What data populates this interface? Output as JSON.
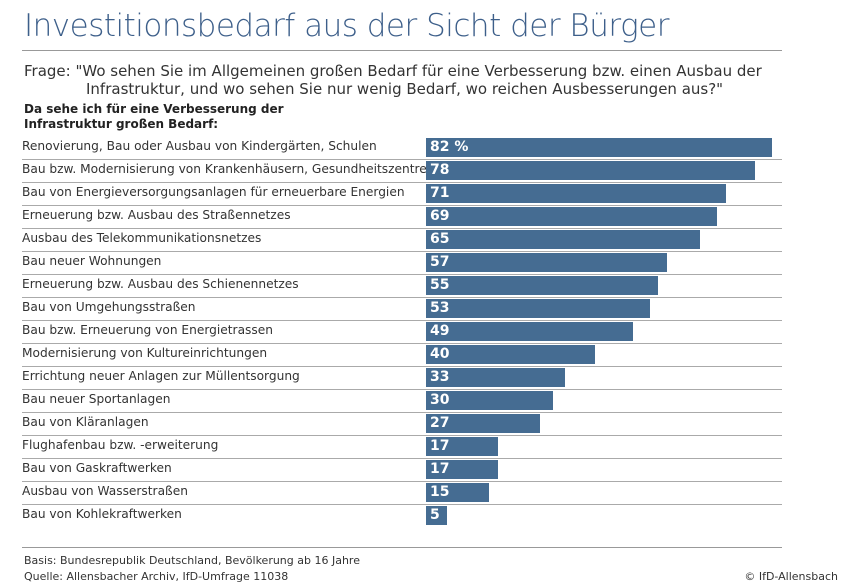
{
  "title": "Investitionsbedarf aus der Sicht der Bürger",
  "question_line1": "Frage:  \"Wo sehen Sie im Allgemeinen großen Bedarf für eine Verbesserung bzw. einen Ausbau der",
  "question_line2": "Infrastruktur, und wo sehen Sie nur wenig Bedarf, wo reichen Ausbesserungen aus?\"",
  "subtitle": "Da sehe ich für eine Verbesserung der Infrastruktur großen Bedarf:",
  "footer": {
    "basis": "Basis: Bundesrepublik Deutschland, Bevölkerung ab 16 Jahre",
    "source": "Quelle: Allensbacher Archiv, IfD-Umfrage 11038",
    "copyright": "© IfD-Allensbach"
  },
  "chart_data": {
    "type": "bar",
    "orientation": "horizontal",
    "unit": "%",
    "bar_color": "#456c92",
    "xlim": [
      0,
      82
    ],
    "categories": [
      "Renovierung, Bau oder Ausbau von Kindergärten, Schulen",
      "Bau bzw. Modernisierung von Krankenhäusern, Gesundheitszentren",
      "Bau von Energieversorgungsanlagen für erneuerbare Energien",
      "Erneuerung bzw. Ausbau des Straßennetzes",
      "Ausbau des Telekommunikationsnetzes",
      "Bau neuer Wohnungen",
      "Erneuerung bzw. Ausbau des Schienennetzes",
      "Bau von Umgehungsstraßen",
      "Bau bzw. Erneuerung von Energietrassen",
      "Modernisierung von Kultureinrichtungen",
      "Errichtung neuer Anlagen zur Müllentsorgung",
      "Bau neuer Sportanlagen",
      "Bau von Kläranlagen",
      "Flughafenbau bzw. -erweiterung",
      "Bau von Gaskraftwerken",
      "Ausbau von Wasserstraßen",
      "Bau von Kohlekraftwerken"
    ],
    "values": [
      82,
      78,
      71,
      69,
      65,
      57,
      55,
      53,
      49,
      40,
      33,
      30,
      27,
      17,
      17,
      15,
      5
    ],
    "data_labels": [
      "82 %",
      "78",
      "71",
      "69",
      "65",
      "57",
      "55",
      "53",
      "49",
      "40",
      "33",
      "30",
      "27",
      "17",
      "17",
      "15",
      "5"
    ]
  }
}
